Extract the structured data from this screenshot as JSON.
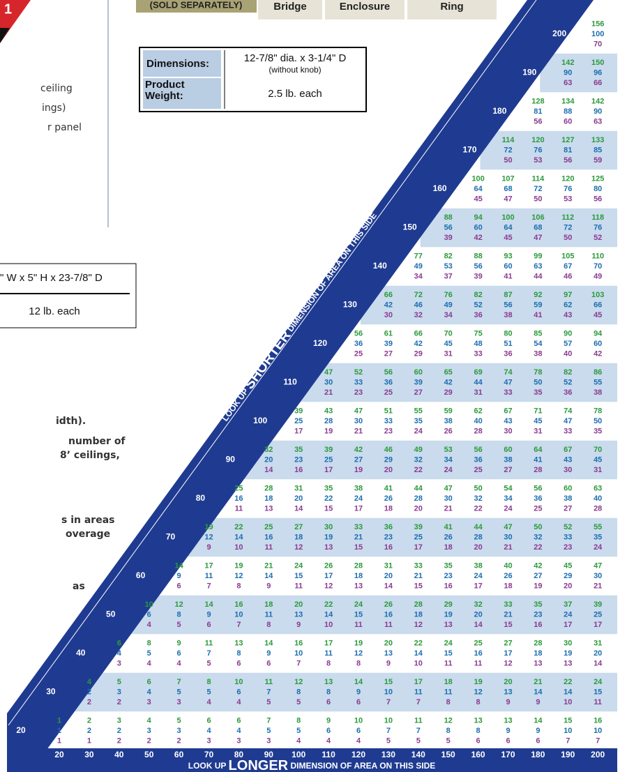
{
  "logo_text": "1",
  "header": {
    "sold_separately": "(SOLD SEPARATELY)",
    "tabs": [
      "Bridge",
      "Enclosure",
      "Ring"
    ]
  },
  "left_top": [
    "ceiling",
    "ings)",
    "r panel"
  ],
  "spec_table": {
    "rows": [
      {
        "label": "Dimensions:",
        "value": "12-7/8\" dia. x 3-1/4\" D",
        "note": "(without knob)"
      },
      {
        "label": "Product Weight:",
        "value": "2.5 lb. each"
      }
    ]
  },
  "partial_spec": {
    "dimensions": "\" W x 5\" H x 23-7/8\" D",
    "weight": "12 lb. each"
  },
  "left_notes": [
    "idth).",
    "number of",
    "8’ ceilings,",
    "s in areas",
    "overage",
    "as"
  ],
  "lookup": {
    "shorter_label": [
      "LOOK UP ",
      "SHORTER",
      " DIMENSION OF AREA ON THIS SIDE"
    ],
    "longer_label": [
      "LOOK UP ",
      "LONGER",
      " DIMENSION OF AREA ON THIS SIDE"
    ],
    "columns": [
      20,
      30,
      40,
      50,
      60,
      70,
      80,
      90,
      100,
      110,
      120,
      130,
      140,
      150,
      160,
      170,
      180,
      190,
      200
    ],
    "rows": [
      {
        "label": 20,
        "cells": [
          [
            1,
            1,
            1
          ],
          [
            2,
            2,
            1
          ],
          [
            3,
            2,
            2
          ],
          [
            4,
            3,
            2
          ],
          [
            5,
            3,
            2
          ],
          [
            6,
            4,
            3
          ],
          [
            6,
            4,
            3
          ],
          [
            7,
            5,
            3
          ],
          [
            8,
            5,
            4
          ],
          [
            9,
            6,
            4
          ],
          [
            10,
            6,
            4
          ],
          [
            10,
            7,
            5
          ],
          [
            11,
            7,
            5
          ],
          [
            12,
            8,
            5
          ],
          [
            13,
            8,
            6
          ],
          [
            13,
            9,
            6
          ],
          [
            14,
            9,
            6
          ],
          [
            15,
            10,
            7
          ],
          [
            16,
            10,
            7
          ]
        ]
      },
      {
        "label": 30,
        "cells": [
          [
            4,
            2,
            2
          ],
          [
            5,
            3,
            2
          ],
          [
            6,
            4,
            3
          ],
          [
            7,
            5,
            3
          ],
          [
            8,
            5,
            4
          ],
          [
            10,
            6,
            4
          ],
          [
            11,
            7,
            5
          ],
          [
            12,
            8,
            5
          ],
          [
            13,
            8,
            6
          ],
          [
            14,
            9,
            6
          ],
          [
            15,
            10,
            7
          ],
          [
            17,
            11,
            7
          ],
          [
            18,
            11,
            8
          ],
          [
            19,
            12,
            8
          ],
          [
            20,
            13,
            9
          ],
          [
            21,
            14,
            9
          ],
          [
            22,
            14,
            10
          ],
          [
            24,
            15,
            11
          ]
        ]
      },
      {
        "label": 40,
        "cells": [
          [
            6,
            4,
            3
          ],
          [
            8,
            5,
            4
          ],
          [
            9,
            6,
            4
          ],
          [
            11,
            7,
            5
          ],
          [
            13,
            8,
            6
          ],
          [
            14,
            9,
            6
          ],
          [
            16,
            10,
            7
          ],
          [
            17,
            11,
            8
          ],
          [
            19,
            12,
            8
          ],
          [
            20,
            13,
            9
          ],
          [
            22,
            14,
            10
          ],
          [
            24,
            15,
            11
          ],
          [
            25,
            16,
            11
          ],
          [
            27,
            17,
            12
          ],
          [
            28,
            18,
            13
          ],
          [
            30,
            19,
            13
          ],
          [
            31,
            20,
            14
          ]
        ]
      },
      {
        "label": 50,
        "cells": [
          [
            10,
            6,
            4
          ],
          [
            12,
            8,
            5
          ],
          [
            14,
            9,
            6
          ],
          [
            16,
            10,
            7
          ],
          [
            18,
            11,
            8
          ],
          [
            20,
            13,
            9
          ],
          [
            22,
            14,
            10
          ],
          [
            24,
            15,
            11
          ],
          [
            26,
            16,
            11
          ],
          [
            28,
            18,
            12
          ],
          [
            29,
            19,
            13
          ],
          [
            32,
            20,
            14
          ],
          [
            33,
            21,
            15
          ],
          [
            35,
            23,
            16
          ],
          [
            37,
            24,
            17
          ],
          [
            39,
            25,
            17
          ]
        ]
      },
      {
        "label": 60,
        "cells": [
          [
            14,
            9,
            6
          ],
          [
            17,
            11,
            7
          ],
          [
            19,
            12,
            8
          ],
          [
            21,
            14,
            9
          ],
          [
            24,
            15,
            11
          ],
          [
            26,
            17,
            12
          ],
          [
            28,
            18,
            13
          ],
          [
            31,
            20,
            14
          ],
          [
            33,
            21,
            15
          ],
          [
            35,
            23,
            16
          ],
          [
            38,
            24,
            17
          ],
          [
            40,
            26,
            18
          ],
          [
            42,
            27,
            19
          ],
          [
            45,
            29,
            20
          ],
          [
            47,
            30,
            21
          ]
        ]
      },
      {
        "label": 70,
        "cells": [
          [
            19,
            12,
            9
          ],
          [
            22,
            14,
            10
          ],
          [
            25,
            16,
            11
          ],
          [
            27,
            18,
            12
          ],
          [
            30,
            19,
            13
          ],
          [
            33,
            21,
            15
          ],
          [
            36,
            23,
            16
          ],
          [
            39,
            25,
            17
          ],
          [
            41,
            26,
            18
          ],
          [
            44,
            28,
            20
          ],
          [
            47,
            30,
            21
          ],
          [
            50,
            32,
            22
          ],
          [
            52,
            33,
            23
          ],
          [
            55,
            35,
            24
          ]
        ]
      },
      {
        "label": 80,
        "cells": [
          [
            25,
            16,
            11
          ],
          [
            28,
            18,
            13
          ],
          [
            31,
            20,
            14
          ],
          [
            35,
            22,
            15
          ],
          [
            38,
            24,
            17
          ],
          [
            41,
            26,
            18
          ],
          [
            44,
            28,
            20
          ],
          [
            47,
            30,
            21
          ],
          [
            50,
            32,
            22
          ],
          [
            54,
            34,
            24
          ],
          [
            56,
            36,
            25
          ],
          [
            60,
            38,
            27
          ],
          [
            63,
            40,
            28
          ]
        ]
      },
      {
        "label": 90,
        "cells": [
          [
            32,
            20,
            14
          ],
          [
            35,
            23,
            16
          ],
          [
            39,
            25,
            17
          ],
          [
            42,
            27,
            19
          ],
          [
            46,
            29,
            20
          ],
          [
            49,
            32,
            22
          ],
          [
            53,
            34,
            24
          ],
          [
            56,
            36,
            25
          ],
          [
            60,
            38,
            27
          ],
          [
            64,
            41,
            28
          ],
          [
            67,
            43,
            30
          ],
          [
            70,
            45,
            31
          ]
        ]
      },
      {
        "label": 100,
        "cells": [
          [
            39,
            25,
            17
          ],
          [
            43,
            28,
            19
          ],
          [
            47,
            30,
            21
          ],
          [
            51,
            33,
            23
          ],
          [
            55,
            35,
            24
          ],
          [
            59,
            38,
            26
          ],
          [
            62,
            40,
            28
          ],
          [
            67,
            43,
            30
          ],
          [
            71,
            45,
            31
          ],
          [
            74,
            47,
            33
          ],
          [
            78,
            50,
            35
          ]
        ]
      },
      {
        "label": 110,
        "cells": [
          [
            47,
            30,
            21
          ],
          [
            52,
            33,
            23
          ],
          [
            56,
            36,
            25
          ],
          [
            60,
            39,
            27
          ],
          [
            65,
            42,
            29
          ],
          [
            69,
            44,
            31
          ],
          [
            74,
            47,
            33
          ],
          [
            78,
            50,
            35
          ],
          [
            82,
            52,
            36
          ],
          [
            86,
            55,
            38
          ]
        ]
      },
      {
        "label": 120,
        "cells": [
          [
            56,
            36,
            25
          ],
          [
            61,
            39,
            27
          ],
          [
            66,
            42,
            29
          ],
          [
            70,
            45,
            31
          ],
          [
            75,
            48,
            33
          ],
          [
            80,
            51,
            36
          ],
          [
            85,
            54,
            38
          ],
          [
            90,
            57,
            40
          ],
          [
            94,
            60,
            42
          ]
        ]
      },
      {
        "label": 130,
        "cells": [
          [
            66,
            42,
            30
          ],
          [
            72,
            46,
            32
          ],
          [
            76,
            49,
            34
          ],
          [
            82,
            52,
            36
          ],
          [
            87,
            56,
            38
          ],
          [
            92,
            59,
            41
          ],
          [
            97,
            62,
            43
          ],
          [
            103,
            66,
            45
          ]
        ]
      },
      {
        "label": 140,
        "cells": [
          [
            77,
            49,
            34
          ],
          [
            82,
            53,
            37
          ],
          [
            88,
            56,
            39
          ],
          [
            93,
            60,
            41
          ],
          [
            99,
            63,
            44
          ],
          [
            105,
            67,
            46
          ],
          [
            110,
            70,
            49
          ]
        ]
      },
      {
        "label": 150,
        "cells": [
          [
            88,
            56,
            39
          ],
          [
            94,
            60,
            42
          ],
          [
            100,
            64,
            45
          ],
          [
            106,
            68,
            47
          ],
          [
            112,
            72,
            50
          ],
          [
            118,
            76,
            52
          ]
        ]
      },
      {
        "label": 160,
        "cells": [
          [
            100,
            64,
            45
          ],
          [
            107,
            68,
            47
          ],
          [
            114,
            72,
            50
          ],
          [
            120,
            76,
            53
          ],
          [
            125,
            80,
            56
          ]
        ]
      },
      {
        "label": 170,
        "cells": [
          [
            114,
            72,
            50
          ],
          [
            120,
            76,
            53
          ],
          [
            127,
            81,
            56
          ],
          [
            133,
            85,
            59
          ]
        ]
      },
      {
        "label": 180,
        "cells": [
          [
            128,
            81,
            56
          ],
          [
            134,
            88,
            60
          ],
          [
            142,
            90,
            63
          ]
        ]
      },
      {
        "label": 190,
        "cells": [
          [
            142,
            90,
            63
          ],
          [
            150,
            96,
            66
          ]
        ]
      },
      {
        "label": 200,
        "cells": [
          [
            156,
            100,
            70
          ]
        ]
      }
    ]
  }
}
